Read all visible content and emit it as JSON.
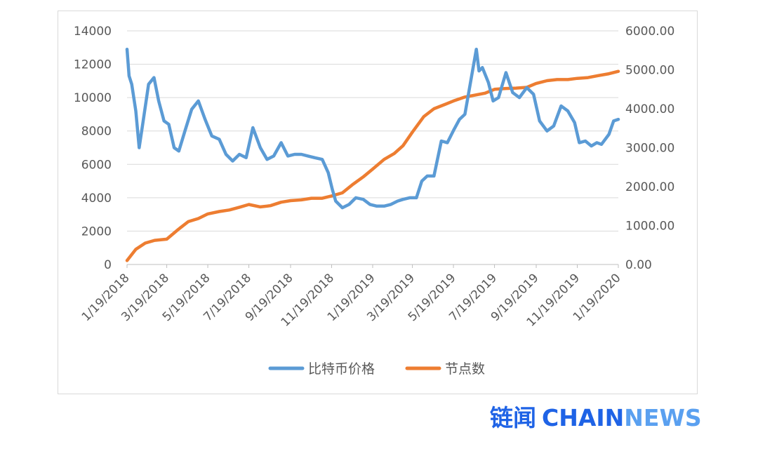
{
  "chart_data": {
    "type": "line",
    "title": "",
    "xlabel": "",
    "ylabel": "",
    "x_ticks": [
      "1/19/2018",
      "3/19/2018",
      "5/19/2018",
      "7/19/2018",
      "9/19/2018",
      "11/19/2018",
      "1/19/2019",
      "3/19/2019",
      "5/19/2019",
      "7/19/2019",
      "9/19/2019",
      "11/19/2019",
      "1/19/2020"
    ],
    "y_left": {
      "ylim": [
        0,
        14000
      ],
      "ticks": [
        "0",
        "2000",
        "4000",
        "6000",
        "8000",
        "10000",
        "12000",
        "14000"
      ]
    },
    "y_right": {
      "ylim": [
        0,
        6000
      ],
      "ticks": [
        "0.00",
        "1000.00",
        "2000.00",
        "3000.00",
        "4000.00",
        "5000.00",
        "6000.00"
      ]
    },
    "grid": true,
    "legend_position": "bottom",
    "series": [
      {
        "name": "比特币价格",
        "axis": "left",
        "color": "#5b9bd5",
        "x": [
          "1/19/2018",
          "1/22/2018",
          "1/26/2018",
          "2/1/2018",
          "2/6/2018",
          "2/12/2018",
          "2/20/2018",
          "2/28/2018",
          "3/7/2018",
          "3/15/2018",
          "3/22/2018",
          "3/30/2018",
          "4/6/2018",
          "4/15/2018",
          "4/25/2018",
          "5/5/2018",
          "5/15/2018",
          "5/25/2018",
          "6/5/2018",
          "6/15/2018",
          "6/25/2018",
          "7/5/2018",
          "7/15/2018",
          "7/25/2018",
          "8/5/2018",
          "8/15/2018",
          "8/25/2018",
          "9/5/2018",
          "9/15/2018",
          "9/25/2018",
          "10/5/2018",
          "10/15/2018",
          "10/25/2018",
          "11/5/2018",
          "11/14/2018",
          "11/20/2018",
          "11/25/2018",
          "12/5/2018",
          "12/15/2018",
          "12/25/2018",
          "1/5/2019",
          "1/15/2019",
          "1/25/2019",
          "2/5/2019",
          "2/15/2019",
          "2/25/2019",
          "3/5/2019",
          "3/15/2019",
          "3/25/2019",
          "4/2/2019",
          "4/10/2019",
          "4/20/2019",
          "5/1/2019",
          "5/10/2019",
          "5/20/2019",
          "5/28/2019",
          "6/5/2019",
          "6/15/2019",
          "6/22/2019",
          "6/26/2019",
          "7/1/2019",
          "7/10/2019",
          "7/17/2019",
          "7/25/2019",
          "8/5/2019",
          "8/15/2019",
          "8/25/2019",
          "9/5/2019",
          "9/15/2019",
          "9/24/2019",
          "10/5/2019",
          "10/15/2019",
          "10/26/2019",
          "11/5/2019",
          "11/15/2019",
          "11/22/2019",
          "12/1/2019",
          "12/10/2019",
          "12/18/2019",
          "12/25/2019",
          "1/5/2020",
          "1/12/2020",
          "1/19/2020"
        ],
        "values": [
          12900,
          11300,
          10800,
          9200,
          7000,
          8600,
          10800,
          11200,
          9800,
          8600,
          8400,
          7000,
          6800,
          8000,
          9300,
          9800,
          8700,
          7700,
          7500,
          6600,
          6200,
          6600,
          6400,
          8200,
          7000,
          6300,
          6500,
          7300,
          6500,
          6600,
          6600,
          6500,
          6400,
          6300,
          5500,
          4500,
          3800,
          3400,
          3600,
          4000,
          3900,
          3600,
          3500,
          3500,
          3600,
          3800,
          3900,
          4000,
          4000,
          5000,
          5300,
          5300,
          7400,
          7300,
          8100,
          8700,
          9000,
          11300,
          12900,
          11600,
          11800,
          10900,
          9800,
          10000,
          11500,
          10300,
          10000,
          10600,
          10200,
          8600,
          8000,
          8300,
          9500,
          9200,
          8500,
          7300,
          7400,
          7100,
          7300,
          7200,
          7800,
          8600,
          8700
        ]
      },
      {
        "name": "节点数",
        "axis": "right",
        "color": "#ed7d31",
        "x": [
          "1/19/2018",
          "2/1/2018",
          "2/15/2018",
          "3/1/2018",
          "3/19/2018",
          "4/5/2018",
          "4/20/2018",
          "5/5/2018",
          "5/19/2018",
          "6/5/2018",
          "6/20/2018",
          "7/5/2018",
          "7/19/2018",
          "8/5/2018",
          "8/20/2018",
          "9/5/2018",
          "9/19/2018",
          "10/5/2018",
          "10/20/2018",
          "11/5/2018",
          "11/19/2018",
          "12/5/2018",
          "12/20/2018",
          "1/5/2019",
          "1/19/2019",
          "2/5/2019",
          "2/20/2019",
          "3/5/2019",
          "3/19/2019",
          "4/5/2019",
          "4/20/2019",
          "5/5/2019",
          "5/19/2019",
          "6/5/2019",
          "6/20/2019",
          "7/5/2019",
          "7/19/2019",
          "8/5/2019",
          "8/20/2019",
          "9/5/2019",
          "9/19/2019",
          "10/5/2019",
          "10/20/2019",
          "11/5/2019",
          "11/19/2019",
          "12/5/2019",
          "12/20/2019",
          "1/5/2020",
          "1/19/2020"
        ],
        "values": [
          100,
          390,
          550,
          620,
          650,
          900,
          1100,
          1180,
          1300,
          1360,
          1400,
          1470,
          1540,
          1480,
          1510,
          1600,
          1640,
          1660,
          1700,
          1700,
          1760,
          1840,
          2050,
          2250,
          2450,
          2700,
          2850,
          3050,
          3400,
          3800,
          4000,
          4100,
          4200,
          4300,
          4350,
          4400,
          4500,
          4520,
          4530,
          4550,
          4650,
          4720,
          4750,
          4750,
          4780,
          4800,
          4850,
          4900,
          4960
        ]
      }
    ]
  },
  "watermark": {
    "cn": "链闻",
    "chain": "CHAIN",
    "news": "NEWS"
  }
}
